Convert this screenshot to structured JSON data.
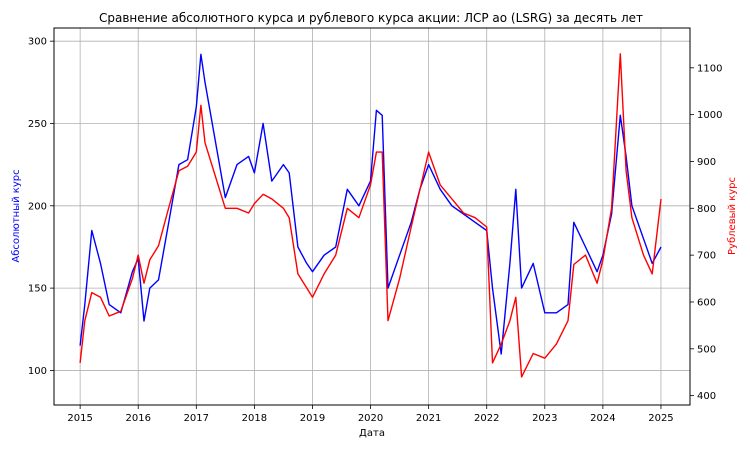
{
  "chart_data": {
    "type": "line",
    "title": "Сравнение абсолютного курса и рублевого курса акции: ЛСР ао (LSRG) за десять лет",
    "xlabel": "Дата",
    "ylabel_left": "Абсолютный курс",
    "ylabel_right": "Рублевый курс",
    "x_ticks": [
      "2015",
      "2016",
      "2017",
      "2018",
      "2019",
      "2020",
      "2021",
      "2022",
      "2023",
      "2024",
      "2025"
    ],
    "y_left_ticks": [
      100,
      150,
      200,
      250,
      300
    ],
    "y_right_ticks": [
      400,
      500,
      600,
      700,
      800,
      900,
      1000,
      1100
    ],
    "y_left_range": [
      79,
      308
    ],
    "y_right_range": [
      380,
      1185
    ],
    "x_range": [
      2014.55,
      2025.5
    ],
    "grid": true,
    "colors": {
      "left_series": "#0000ff",
      "right_series": "#ff0000",
      "left_axis": "#0000ff",
      "right_axis": "#ff0000"
    },
    "series": [
      {
        "axis": "left",
        "color": "#0000ff",
        "x": [
          2015.0,
          2015.08,
          2015.2,
          2015.35,
          2015.5,
          2015.7,
          2015.9,
          2016.0,
          2016.1,
          2016.2,
          2016.35,
          2016.5,
          2016.7,
          2016.85,
          2017.0,
          2017.08,
          2017.15,
          2017.3,
          2017.5,
          2017.7,
          2017.9,
          2018.0,
          2018.15,
          2018.3,
          2018.5,
          2018.6,
          2018.75,
          2018.9,
          2019.0,
          2019.2,
          2019.4,
          2019.6,
          2019.8,
          2020.0,
          2020.1,
          2020.2,
          2020.3,
          2020.5,
          2020.7,
          2020.85,
          2021.0,
          2021.2,
          2021.4,
          2021.6,
          2021.8,
          2022.0,
          2022.1,
          2022.25,
          2022.4,
          2022.5,
          2022.6,
          2022.8,
          2023.0,
          2023.2,
          2023.4,
          2023.5,
          2023.7,
          2023.9,
          2024.0,
          2024.15,
          2024.3,
          2024.4,
          2024.5,
          2024.7,
          2024.85,
          2025.0
        ],
        "values": [
          115,
          140,
          185,
          165,
          140,
          135,
          160,
          168,
          130,
          150,
          155,
          185,
          225,
          228,
          260,
          292,
          275,
          245,
          205,
          225,
          230,
          220,
          250,
          215,
          225,
          220,
          175,
          165,
          160,
          170,
          175,
          210,
          200,
          215,
          258,
          255,
          150,
          170,
          190,
          210,
          225,
          210,
          200,
          195,
          190,
          185,
          150,
          110,
          165,
          210,
          150,
          165,
          135,
          135,
          140,
          190,
          175,
          160,
          170,
          195,
          255,
          230,
          200,
          180,
          165,
          175
        ]
      },
      {
        "axis": "right",
        "color": "#ff0000",
        "x": [
          2015.0,
          2015.08,
          2015.2,
          2015.35,
          2015.5,
          2015.7,
          2015.9,
          2016.0,
          2016.1,
          2016.2,
          2016.35,
          2016.5,
          2016.7,
          2016.85,
          2017.0,
          2017.08,
          2017.15,
          2017.3,
          2017.5,
          2017.7,
          2017.9,
          2018.0,
          2018.15,
          2018.3,
          2018.5,
          2018.6,
          2018.75,
          2018.9,
          2019.0,
          2019.2,
          2019.4,
          2019.6,
          2019.8,
          2020.0,
          2020.1,
          2020.2,
          2020.3,
          2020.5,
          2020.7,
          2020.85,
          2021.0,
          2021.2,
          2021.4,
          2021.6,
          2021.8,
          2022.0,
          2022.1,
          2022.25,
          2022.4,
          2022.5,
          2022.6,
          2022.8,
          2023.0,
          2023.2,
          2023.4,
          2023.5,
          2023.7,
          2023.9,
          2024.0,
          2024.15,
          2024.3,
          2024.4,
          2024.5,
          2024.7,
          2024.85,
          2025.0
        ],
        "values": [
          470,
          560,
          620,
          610,
          570,
          580,
          650,
          700,
          640,
          690,
          720,
          790,
          880,
          890,
          920,
          1020,
          940,
          880,
          800,
          800,
          790,
          810,
          830,
          820,
          800,
          780,
          660,
          630,
          610,
          660,
          700,
          800,
          780,
          850,
          920,
          920,
          560,
          650,
          760,
          840,
          920,
          850,
          820,
          790,
          780,
          760,
          470,
          510,
          560,
          610,
          440,
          490,
          480,
          510,
          560,
          680,
          700,
          640,
          690,
          800,
          1130,
          880,
          780,
          700,
          660,
          820
        ]
      }
    ]
  }
}
